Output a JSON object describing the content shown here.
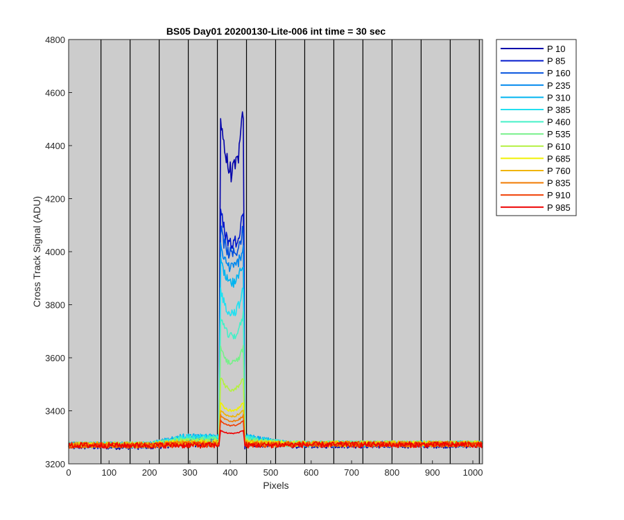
{
  "chart_data": {
    "type": "line",
    "title": "BS05 Day01 20200130-Lite-006 int time = 30 sec",
    "xlabel": "Pixels",
    "ylabel": "Cross Track Signal (ADU)",
    "xlim": [
      0,
      1024
    ],
    "ylim": [
      3200,
      4800
    ],
    "xticks": [
      0,
      100,
      200,
      300,
      400,
      500,
      600,
      700,
      800,
      900,
      1000
    ],
    "yticks": [
      3200,
      3400,
      3600,
      3800,
      4000,
      4200,
      4400,
      4600,
      4800
    ],
    "vertical_gridlines_x": [
      80,
      152,
      224,
      296,
      368,
      440,
      512,
      584,
      656,
      728,
      800,
      872,
      944,
      1016
    ],
    "background_color": "#cccccc",
    "gridline_color": "#000000",
    "legend_position": "outside-top-right",
    "peak_region_x": [
      372,
      436
    ],
    "series": [
      {
        "name": "P 10",
        "color": "#0000aa",
        "baseline_left": 3265,
        "baseline_mid": 3275,
        "baseline_right": 3270,
        "peak_edge": 4610,
        "peak_center": 4300
      },
      {
        "name": "P 85",
        "color": "#0018cc",
        "baseline_left": 3268,
        "baseline_mid": 3285,
        "baseline_right": 3272,
        "peak_edge": 4200,
        "peak_center": 4030
      },
      {
        "name": "P 160",
        "color": "#0050dd",
        "baseline_left": 3270,
        "baseline_mid": 3295,
        "baseline_right": 3274,
        "peak_edge": 4120,
        "peak_center": 3990
      },
      {
        "name": "P 235",
        "color": "#0088ee",
        "baseline_left": 3272,
        "baseline_mid": 3300,
        "baseline_right": 3275,
        "peak_edge": 4050,
        "peak_center": 3940
      },
      {
        "name": "P 310",
        "color": "#00b4f0",
        "baseline_left": 3272,
        "baseline_mid": 3302,
        "baseline_right": 3276,
        "peak_edge": 3990,
        "peak_center": 3880
      },
      {
        "name": "P 385",
        "color": "#22e0f0",
        "baseline_left": 3272,
        "baseline_mid": 3300,
        "baseline_right": 3276,
        "peak_edge": 3890,
        "peak_center": 3770
      },
      {
        "name": "P 460",
        "color": "#44f0c8",
        "baseline_left": 3272,
        "baseline_mid": 3295,
        "baseline_right": 3276,
        "peak_edge": 3790,
        "peak_center": 3680
      },
      {
        "name": "P 535",
        "color": "#77f08a",
        "baseline_left": 3272,
        "baseline_mid": 3290,
        "baseline_right": 3276,
        "peak_edge": 3660,
        "peak_center": 3580
      },
      {
        "name": "P 610",
        "color": "#b4f040",
        "baseline_left": 3272,
        "baseline_mid": 3285,
        "baseline_right": 3276,
        "peak_edge": 3540,
        "peak_center": 3480
      },
      {
        "name": "P 685",
        "color": "#f0f000",
        "baseline_left": 3272,
        "baseline_mid": 3280,
        "baseline_right": 3276,
        "peak_edge": 3440,
        "peak_center": 3400
      },
      {
        "name": "P 760",
        "color": "#f0b400",
        "baseline_left": 3272,
        "baseline_mid": 3278,
        "baseline_right": 3275,
        "peak_edge": 3410,
        "peak_center": 3380
      },
      {
        "name": "P 835",
        "color": "#f07a00",
        "baseline_left": 3270,
        "baseline_mid": 3275,
        "baseline_right": 3274,
        "peak_edge": 3390,
        "peak_center": 3360
      },
      {
        "name": "P 910",
        "color": "#f03c00",
        "baseline_left": 3270,
        "baseline_mid": 3272,
        "baseline_right": 3273,
        "peak_edge": 3370,
        "peak_center": 3345
      },
      {
        "name": "P 985",
        "color": "#ee0000",
        "baseline_left": 3270,
        "baseline_mid": 3270,
        "baseline_right": 3272,
        "peak_edge": 3330,
        "peak_center": 3315
      }
    ]
  }
}
